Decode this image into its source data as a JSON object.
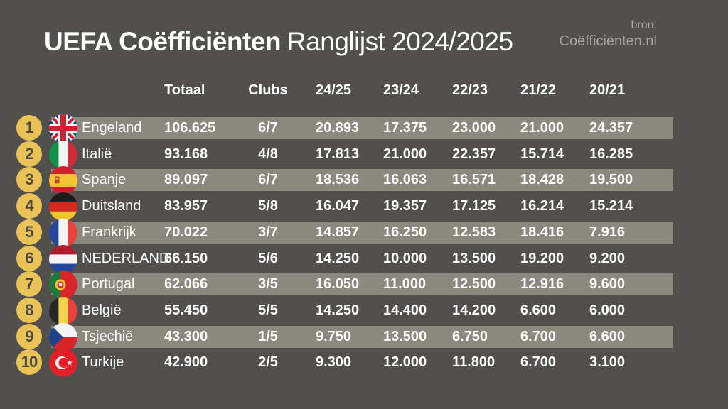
{
  "title": {
    "bold": "UEFA Coëfficiënten",
    "regular": "Ranglijst 2024/2025"
  },
  "source": {
    "line1": "bron:",
    "line2": "Coëfficiënten.nl"
  },
  "table": {
    "headers": [
      "Totaal",
      "Clubs",
      "24/25",
      "23/24",
      "22/23",
      "21/22",
      "20/21"
    ],
    "rows": [
      {
        "rank": "1",
        "country": "Engeland",
        "flag": "gb",
        "totaal": "106.625",
        "clubs": "6/7",
        "s2425": "20.893",
        "s2324": "17.375",
        "s2223": "23.000",
        "s2122": "21.000",
        "s2021": "24.357",
        "highlight": true
      },
      {
        "rank": "2",
        "country": "Italië",
        "flag": "it",
        "totaal": "93.168",
        "clubs": "4/8",
        "s2425": "17.813",
        "s2324": "21.000",
        "s2223": "22.357",
        "s2122": "15.714",
        "s2021": "16.285",
        "highlight": false
      },
      {
        "rank": "3",
        "country": "Spanje",
        "flag": "es",
        "totaal": "89.097",
        "clubs": "6/7",
        "s2425": "18.536",
        "s2324": "16.063",
        "s2223": "16.571",
        "s2122": "18.428",
        "s2021": "19.500",
        "highlight": true
      },
      {
        "rank": "4",
        "country": "Duitsland",
        "flag": "de",
        "totaal": "83.957",
        "clubs": "5/8",
        "s2425": "16.047",
        "s2324": "19.357",
        "s2223": "17.125",
        "s2122": "16.214",
        "s2021": "15.214",
        "highlight": false
      },
      {
        "rank": "5",
        "country": "Frankrijk",
        "flag": "fr",
        "totaal": "70.022",
        "clubs": "3/7",
        "s2425": "14.857",
        "s2324": "16.250",
        "s2223": "12.583",
        "s2122": "18.416",
        "s2021": "7.916",
        "highlight": true
      },
      {
        "rank": "6",
        "country": "NEDERLAND",
        "flag": "nl",
        "totaal": "66.150",
        "clubs": "5/6",
        "s2425": "14.250",
        "s2324": "10.000",
        "s2223": "13.500",
        "s2122": "19.200",
        "s2021": "9.200",
        "highlight": false
      },
      {
        "rank": "7",
        "country": "Portugal",
        "flag": "pt",
        "totaal": "62.066",
        "clubs": "3/5",
        "s2425": "16.050",
        "s2324": "11.000",
        "s2223": "12.500",
        "s2122": "12.916",
        "s2021": "9.600",
        "highlight": true
      },
      {
        "rank": "8",
        "country": "België",
        "flag": "be",
        "totaal": "55.450",
        "clubs": "5/5",
        "s2425": "14.250",
        "s2324": "14.400",
        "s2223": "14.200",
        "s2122": "6.600",
        "s2021": "6.000",
        "highlight": false
      },
      {
        "rank": "9",
        "country": "Tsjechië",
        "flag": "cz",
        "totaal": "43.300",
        "clubs": "1/5",
        "s2425": "9.750",
        "s2324": "13.500",
        "s2223": "6.750",
        "s2122": "6.700",
        "s2021": "6.600",
        "highlight": true
      },
      {
        "rank": "10",
        "country": "Turkije",
        "flag": "tr",
        "totaal": "42.900",
        "clubs": "2/5",
        "s2425": "9.300",
        "s2324": "12.000",
        "s2223": "11.800",
        "s2122": "6.700",
        "s2021": "3.100",
        "highlight": false
      }
    ]
  },
  "colors": {
    "background": "#52504d",
    "band": "#8b887d",
    "badge_gold": "#e9c258",
    "badge_text": "#4c4a43",
    "text": "#ffffff",
    "source_text": "#a7a5a1"
  }
}
